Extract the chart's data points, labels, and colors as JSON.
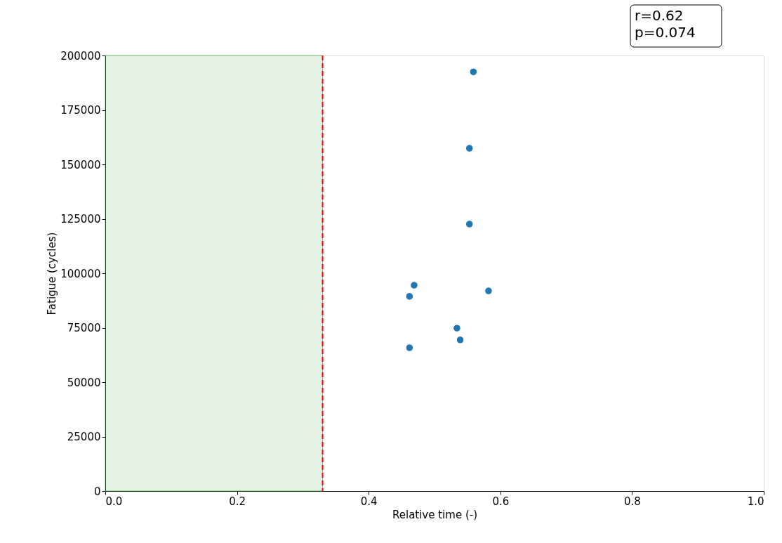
{
  "chart_data": {
    "type": "scatter",
    "xlabel": "Relative time (-)",
    "ylabel": "Fatigue (cycles)",
    "x": [
      0.559,
      0.553,
      0.553,
      0.469,
      0.462,
      0.582,
      0.534,
      0.539,
      0.462
    ],
    "series": [
      {
        "color": "#1f77b4",
        "values": [
          192500,
          157400,
          122600,
          94500,
          89400,
          91900,
          74800,
          69400,
          65800
        ]
      }
    ],
    "xlim": [
      0,
      1
    ],
    "ylim": [
      0,
      200000
    ],
    "xticks": [
      {
        "value": 0,
        "label": "0.0"
      },
      {
        "value": 0.2,
        "label": "0.2"
      },
      {
        "value": 0.4,
        "label": "0.4"
      },
      {
        "value": 0.6,
        "label": "0.6"
      },
      {
        "value": 0.8,
        "label": "0.8"
      },
      {
        "value": 1,
        "label": "1.0"
      }
    ],
    "yticks": [
      0,
      25000,
      50000,
      75000,
      100000,
      125000,
      150000,
      175000,
      200000
    ],
    "ref_lines": [
      {
        "axis": "x",
        "value": 0.33,
        "color": "#ff0000",
        "line_style": "dashed"
      }
    ],
    "bands": [
      {
        "axis": "x",
        "from": 0,
        "to": 0.33,
        "color": "#2ca02c"
      }
    ],
    "annotations": [
      "r=0.62\np=0.074"
    ],
    "marker": "circle",
    "grid": false,
    "legend": false
  }
}
